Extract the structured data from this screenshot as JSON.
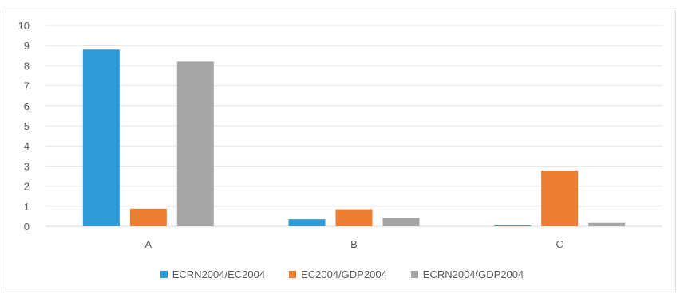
{
  "chart_data": {
    "type": "bar",
    "categories": [
      "A",
      "B",
      "C"
    ],
    "series": [
      {
        "name": "ECRN2004/EC2004",
        "color": "#2e9bd8",
        "values": [
          8.8,
          0.35,
          0.05
        ]
      },
      {
        "name": "EC2004/GDP2004",
        "color": "#ed7d31",
        "values": [
          0.88,
          0.85,
          2.78
        ]
      },
      {
        "name": "ECRN2004/GDP2004",
        "color": "#a5a5a5",
        "values": [
          8.2,
          0.42,
          0.17
        ]
      }
    ],
    "ylim": [
      0,
      10
    ],
    "yticks": [
      0,
      1,
      2,
      3,
      4,
      5,
      6,
      7,
      8,
      9,
      10
    ],
    "gridlines": true,
    "legend_position": "bottom"
  }
}
